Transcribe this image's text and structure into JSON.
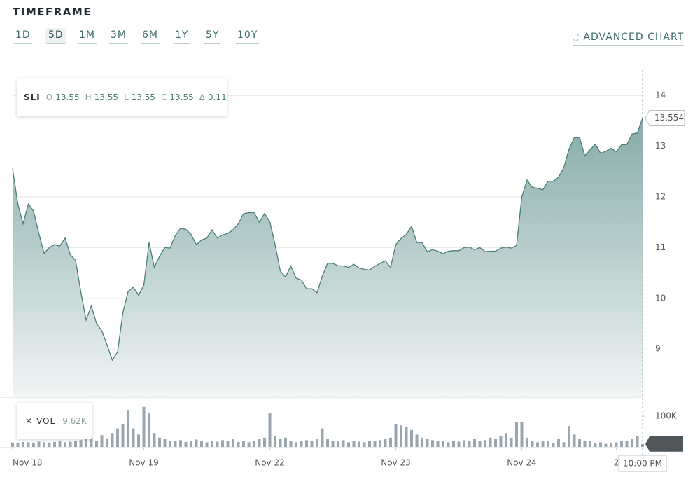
{
  "header": {
    "title": "TIMEFRAME",
    "timeframes": [
      "1D",
      "5D",
      "1M",
      "3M",
      "6M",
      "1Y",
      "5Y",
      "10Y"
    ],
    "selected": "5D",
    "advanced": "ADVANCED CHART"
  },
  "chart_data": {
    "type": "area",
    "series": [
      {
        "name": "SLI",
        "color": "#4a7d78",
        "values": [
          12.56,
          11.86,
          11.47,
          11.86,
          11.72,
          11.28,
          10.89,
          11.0,
          11.06,
          11.03,
          11.19,
          10.86,
          10.75,
          10.13,
          9.57,
          9.85,
          9.5,
          9.36,
          9.08,
          8.78,
          8.94,
          9.71,
          10.13,
          10.22,
          10.06,
          10.26,
          11.1,
          10.61,
          10.83,
          11.0,
          10.99,
          11.24,
          11.38,
          11.36,
          11.26,
          11.06,
          11.15,
          11.19,
          11.35,
          11.19,
          11.25,
          11.28,
          11.35,
          11.47,
          11.67,
          11.69,
          11.69,
          11.5,
          11.67,
          11.51,
          11.06,
          10.54,
          10.42,
          10.64,
          10.4,
          10.36,
          10.19,
          10.19,
          10.11,
          10.44,
          10.69,
          10.69,
          10.64,
          10.64,
          10.61,
          10.67,
          10.6,
          10.57,
          10.56,
          10.63,
          10.69,
          10.74,
          10.61,
          11.06,
          11.18,
          11.26,
          11.42,
          11.1,
          11.1,
          10.92,
          10.96,
          10.93,
          10.88,
          10.93,
          10.94,
          10.94,
          11.0,
          11.01,
          10.96,
          11.0,
          10.92,
          10.93,
          10.93,
          10.99,
          11.01,
          10.99,
          11.04,
          12.0,
          12.33,
          12.19,
          12.17,
          12.14,
          12.31,
          12.31,
          12.39,
          12.58,
          12.94,
          13.17,
          13.17,
          12.81,
          12.93,
          13.04,
          12.86,
          12.9,
          12.96,
          12.89,
          13.03,
          13.03,
          13.24,
          13.26,
          13.554
        ]
      }
    ],
    "legend": {
      "items": [
        {
          "key": "O",
          "value": "13.55"
        },
        {
          "key": "H",
          "value": "13.55"
        },
        {
          "key": "L",
          "value": "13.55"
        },
        {
          "key": "C",
          "value": "13.55"
        },
        {
          "key": "Δ",
          "value": "0.11"
        }
      ]
    },
    "xlim": [
      0,
      120
    ],
    "xticks": [
      {
        "value": 0,
        "label": "Nov 18"
      },
      {
        "value": 25,
        "label": "Nov 19"
      },
      {
        "value": 49,
        "label": "Nov 22"
      },
      {
        "value": 73,
        "label": "Nov 23"
      },
      {
        "value": 97,
        "label": "Nov 24"
      },
      {
        "value": 115,
        "label": "2"
      }
    ],
    "ylim": [
      8.05,
      14.5
    ],
    "yticks": [
      9,
      10,
      11,
      12,
      13,
      14
    ],
    "grid": true,
    "crosshair_label": "10:00 PM",
    "volume": {
      "name": "VOL",
      "color": "#9aa6ad",
      "ylim": [
        0,
        150
      ],
      "yticks": [
        {
          "value": 100,
          "label": "100K"
        }
      ],
      "values": [
        14,
        12,
        16,
        15,
        13,
        17,
        15,
        14,
        16,
        18,
        15,
        17,
        20,
        22,
        25,
        30,
        20,
        38,
        28,
        45,
        60,
        75,
        120,
        60,
        40,
        130,
        110,
        45,
        30,
        25,
        20,
        18,
        22,
        16,
        20,
        24,
        18,
        15,
        20,
        17,
        22,
        18,
        25,
        16,
        20,
        15,
        20,
        25,
        30,
        109,
        35,
        25,
        30,
        20,
        15,
        18,
        22,
        20,
        25,
        60,
        25,
        20,
        18,
        22,
        15,
        20,
        17,
        15,
        20,
        18,
        22,
        25,
        30,
        75,
        70,
        65,
        55,
        40,
        30,
        25,
        22,
        20,
        18,
        15,
        20,
        17,
        22,
        18,
        25,
        20,
        22,
        30,
        25,
        35,
        45,
        30,
        80,
        82,
        30,
        20,
        15,
        18,
        20,
        12,
        25,
        15,
        68,
        40,
        25,
        20,
        18,
        12,
        15,
        10,
        12,
        15,
        18,
        20,
        25,
        35,
        9.62
      ],
      "value_labels": [
        null,
        null,
        null,
        null,
        null,
        null,
        null,
        null,
        null,
        null,
        null,
        null,
        null,
        null,
        null,
        null,
        null,
        null,
        null,
        null,
        null,
        null,
        null,
        null,
        null,
        null,
        null,
        null,
        null,
        null,
        null,
        null,
        null,
        null,
        null,
        null,
        null,
        null,
        null,
        null,
        null,
        null,
        null,
        null,
        null,
        null,
        null,
        null,
        null,
        null,
        null,
        null,
        null,
        null,
        null,
        null,
        null,
        null,
        null,
        null,
        null,
        null,
        null,
        null,
        null,
        null,
        null,
        null,
        null,
        null,
        null,
        null,
        null,
        null,
        null,
        null,
        null,
        null,
        null,
        null,
        null,
        null,
        null,
        null,
        null,
        null,
        null,
        null,
        null,
        null,
        null,
        null,
        null,
        null,
        null,
        null,
        null,
        null,
        null,
        null,
        null,
        null,
        null,
        null,
        null,
        null,
        null,
        null,
        null,
        null,
        null,
        null,
        null,
        null,
        null,
        null,
        null,
        null,
        null,
        null,
        "9.62K"
      ]
    }
  }
}
